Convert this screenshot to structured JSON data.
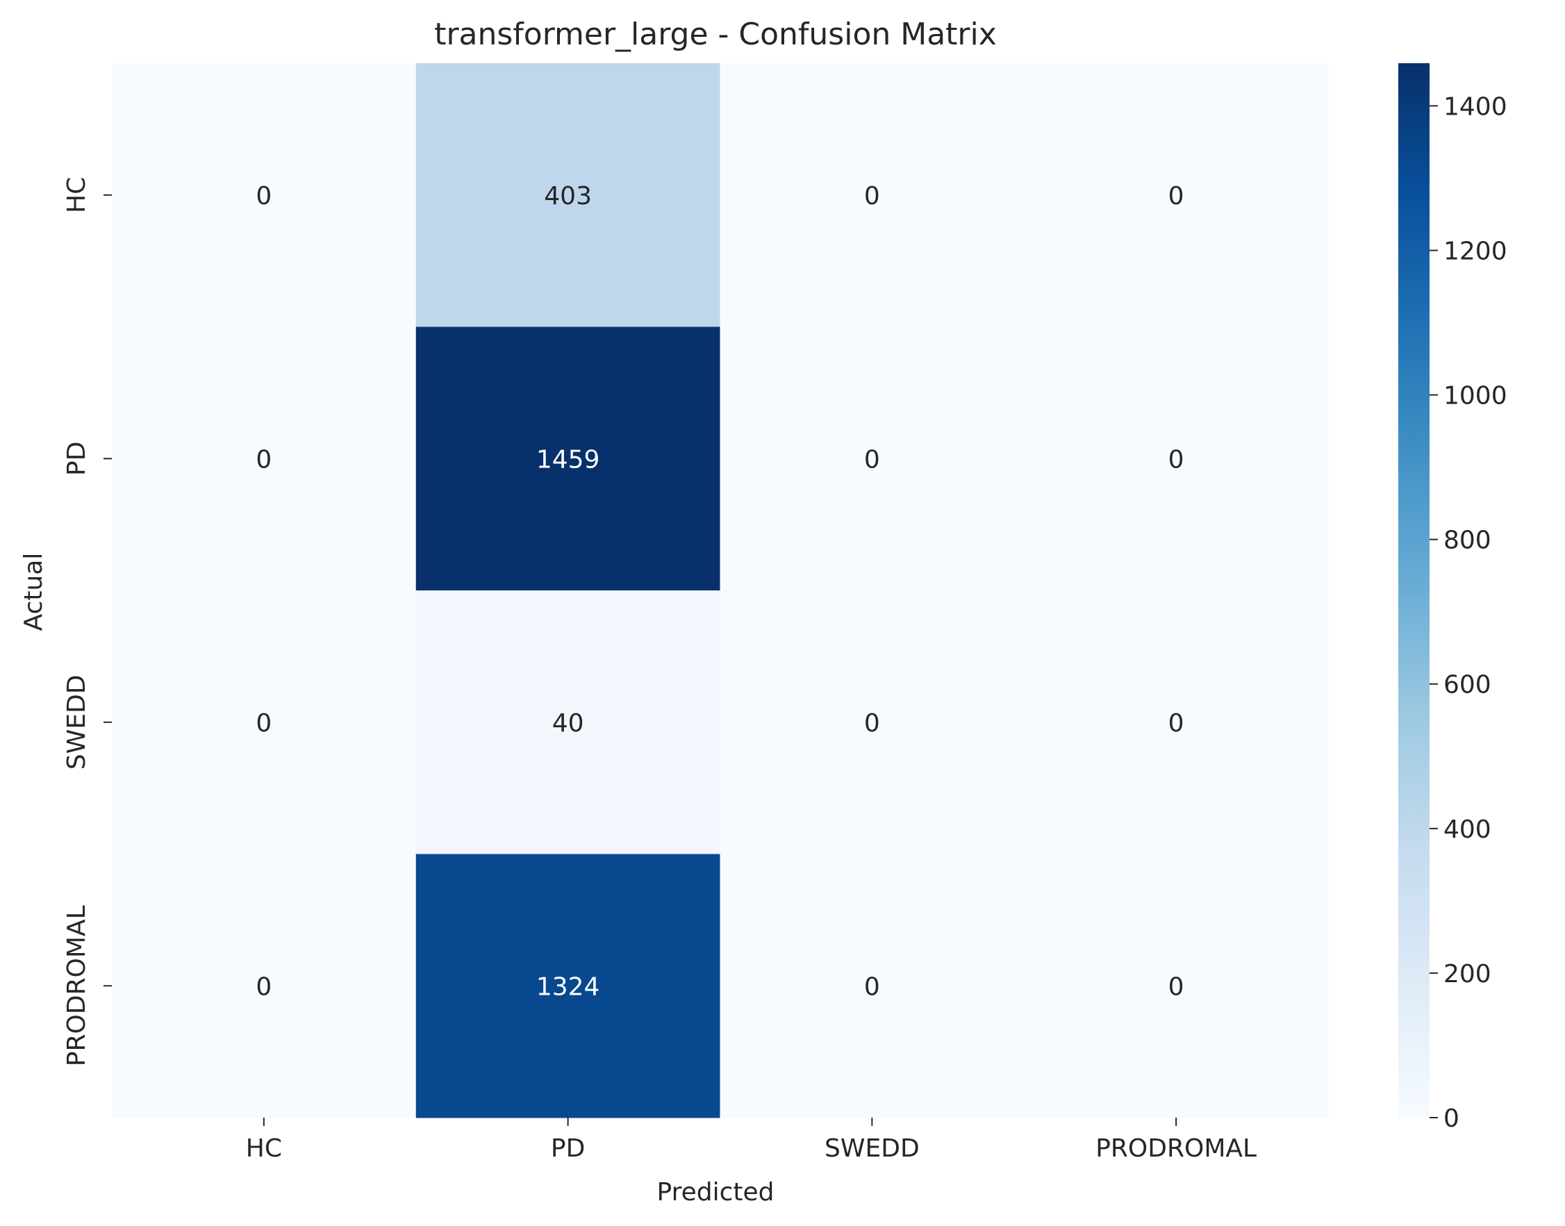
{
  "chart_data": {
    "type": "heatmap",
    "title": "transformer_large - Confusion Matrix",
    "xlabel": "Predicted",
    "ylabel": "Actual",
    "x_categories": [
      "HC",
      "PD",
      "SWEDD",
      "PRODROMAL"
    ],
    "y_categories": [
      "HC",
      "PD",
      "SWEDD",
      "PRODROMAL"
    ],
    "values": [
      [
        0,
        403,
        0,
        0
      ],
      [
        0,
        1459,
        0,
        0
      ],
      [
        0,
        40,
        0,
        0
      ],
      [
        0,
        1324,
        0,
        0
      ]
    ],
    "colormap": "Blues",
    "colorbar": {
      "range": [
        0,
        1459
      ],
      "ticks": [
        0,
        200,
        400,
        600,
        800,
        1000,
        1200,
        1400
      ]
    },
    "text_colors": {
      "dark": "#262626",
      "light": "#ffffff"
    }
  }
}
